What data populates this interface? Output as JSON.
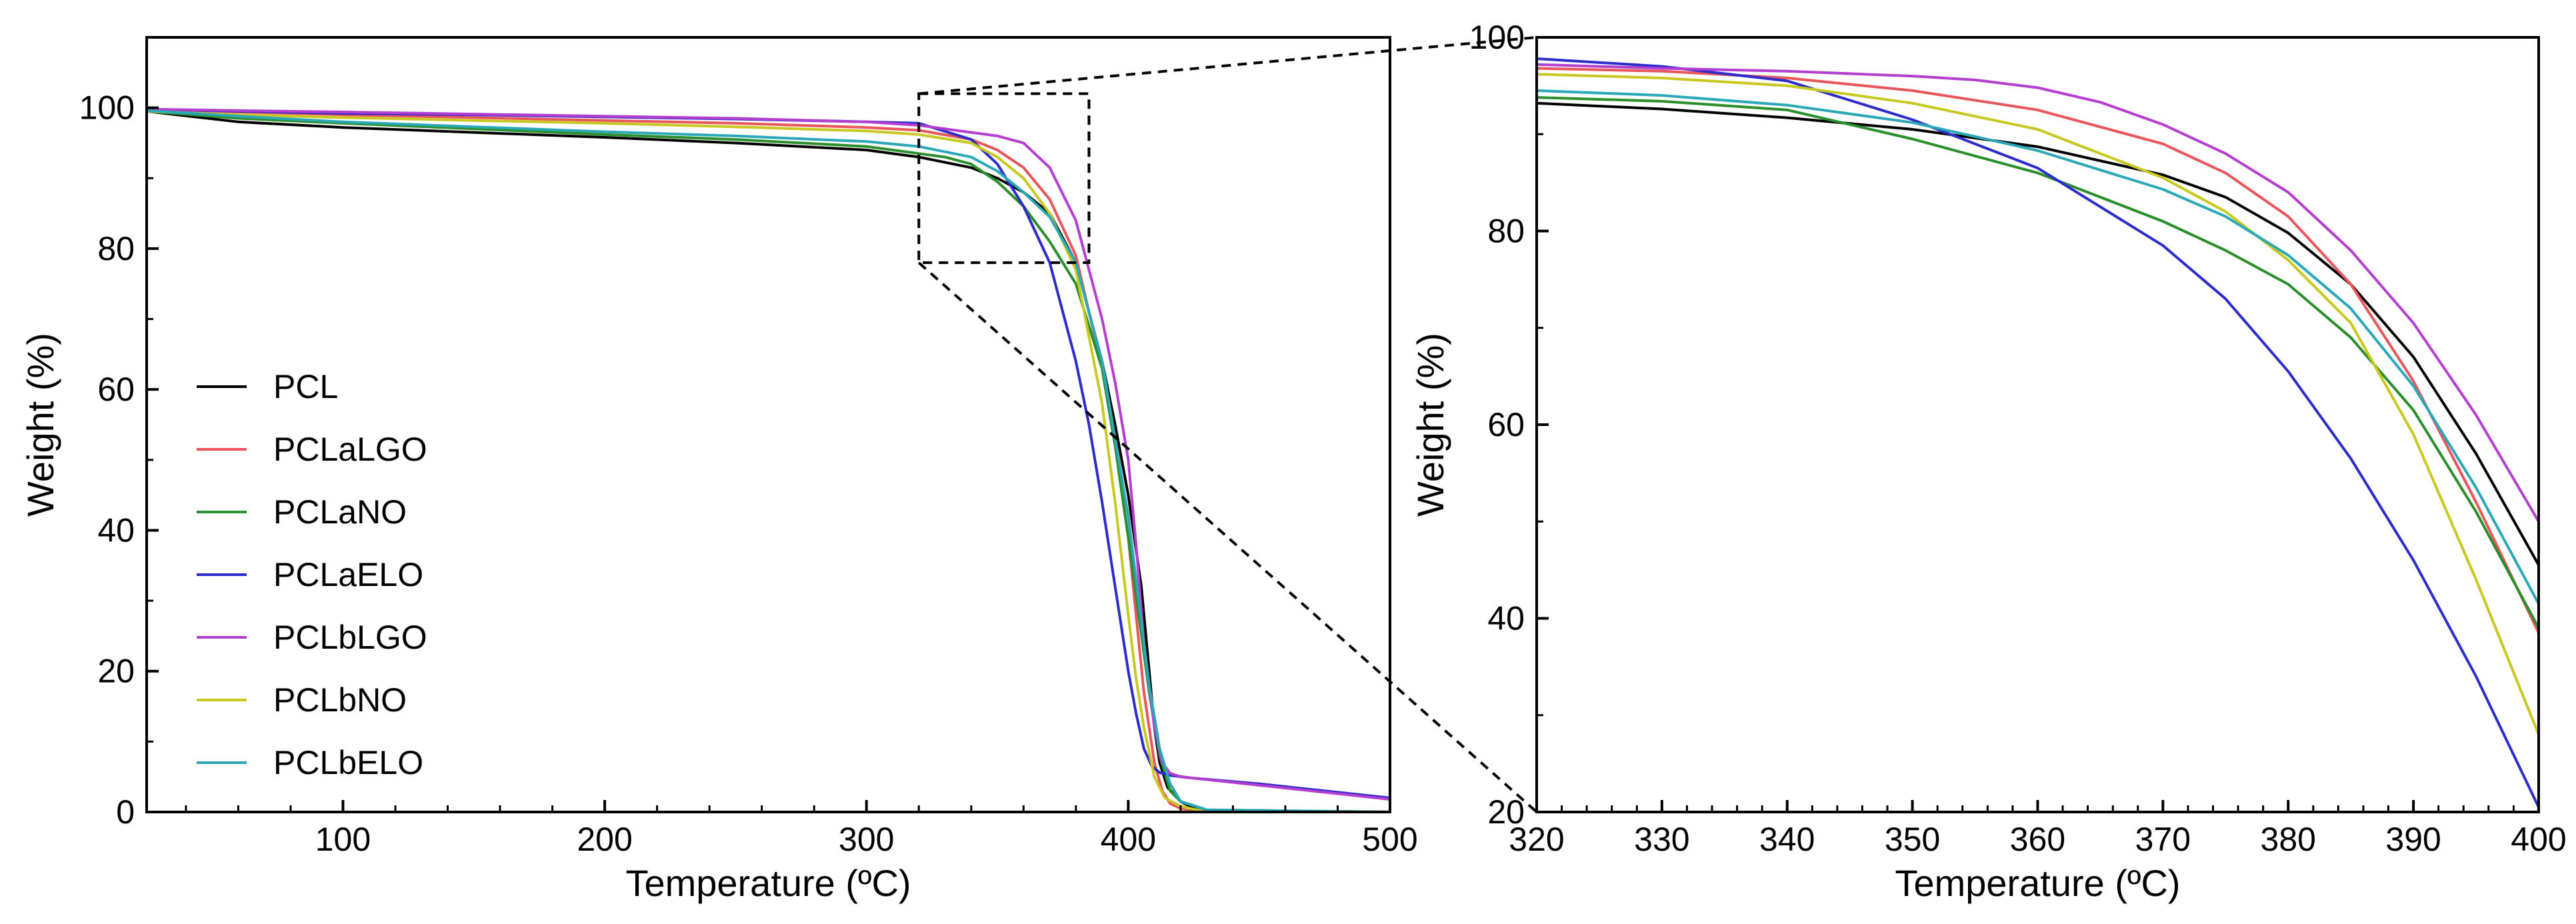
{
  "chart_data": [
    {
      "type": "line",
      "id": "main",
      "xlabel": "Temperature (ºC)",
      "ylabel": "Weight (%)",
      "xlim": [
        25,
        500
      ],
      "ylim": [
        0,
        110
      ],
      "xticks": [
        100,
        200,
        300,
        400,
        500
      ],
      "yticks": [
        0,
        20,
        40,
        60,
        80,
        100
      ],
      "legend_position": "middle-left",
      "zoom_region": {
        "x": [
          320,
          385
        ],
        "y": [
          78,
          102
        ]
      },
      "series": [
        {
          "name": "PCL",
          "color": "#000000",
          "x": [
            25,
            60,
            100,
            150,
            200,
            250,
            300,
            320,
            340,
            350,
            360,
            370,
            380,
            390,
            395,
            400,
            405,
            408,
            410,
            412,
            415,
            420,
            425,
            430,
            440,
            500
          ],
          "y": [
            99.5,
            98,
            97.2,
            96.5,
            95.8,
            95,
            94,
            93,
            91.5,
            90,
            88,
            85,
            78,
            64,
            55,
            45,
            32,
            20,
            12,
            7,
            3.5,
            1.5,
            0.5,
            0.2,
            0,
            0
          ]
        },
        {
          "name": "PCLaLGO",
          "color": "#e8555a",
          "x": [
            25,
            60,
            100,
            150,
            200,
            250,
            300,
            320,
            340,
            350,
            360,
            370,
            380,
            390,
            395,
            400,
            403,
            406,
            410,
            413,
            416,
            420,
            430,
            500
          ],
          "y": [
            99.8,
            99.4,
            99,
            98.6,
            98.2,
            97.8,
            97.2,
            96.8,
            95.5,
            94,
            91.5,
            87,
            79,
            63,
            52,
            39,
            28,
            17,
            7,
            3,
            1.2,
            0.5,
            0,
            0
          ]
        },
        {
          "name": "PCLaNO",
          "color": "#2a8f2a",
          "x": [
            25,
            60,
            100,
            150,
            200,
            250,
            300,
            320,
            330,
            340,
            350,
            360,
            370,
            380,
            390,
            395,
            400,
            404,
            408,
            412,
            416,
            420,
            430,
            500
          ],
          "y": [
            99.5,
            98.5,
            97.8,
            97,
            96.2,
            95.5,
            94.5,
            93.5,
            93,
            92,
            89.5,
            86,
            81,
            75,
            63,
            52,
            39,
            28,
            17,
            8,
            3,
            1.5,
            0.3,
            0
          ]
        },
        {
          "name": "PCLaELO",
          "color": "#2c2ccc",
          "x": [
            25,
            60,
            100,
            150,
            200,
            250,
            300,
            320,
            340,
            350,
            360,
            370,
            380,
            385,
            390,
            395,
            400,
            403,
            406,
            409,
            412,
            416,
            425,
            450,
            500
          ],
          "y": [
            99.8,
            99.5,
            99.2,
            99,
            98.7,
            98.4,
            98,
            97.8,
            95.5,
            92,
            86,
            78,
            64,
            55,
            44,
            32,
            20,
            14,
            9,
            6.5,
            5.6,
            5.2,
            4.8,
            4,
            2
          ]
        },
        {
          "name": "PCLbLGO",
          "color": "#b33ed0",
          "x": [
            25,
            60,
            100,
            150,
            200,
            250,
            300,
            320,
            340,
            350,
            360,
            370,
            380,
            390,
            395,
            400,
            403,
            406,
            410,
            413,
            416,
            420,
            430,
            450,
            500
          ],
          "y": [
            99.8,
            99.6,
            99.4,
            99.1,
            98.8,
            98.5,
            98,
            97.5,
            96.5,
            96,
            95,
            91.5,
            84,
            70,
            61,
            50,
            38,
            24,
            12,
            7,
            5.5,
            5,
            4.6,
            3.8,
            1.8
          ]
        },
        {
          "name": "PCLbNO",
          "color": "#c8c820",
          "x": [
            25,
            60,
            100,
            150,
            200,
            250,
            300,
            320,
            340,
            350,
            360,
            370,
            380,
            390,
            395,
            400,
            403,
            406,
            410,
            414,
            420,
            430,
            500
          ],
          "y": [
            99.5,
            99,
            98.6,
            98.2,
            97.8,
            97.3,
            96.7,
            96.2,
            95,
            93,
            90,
            85,
            77,
            58,
            44,
            28,
            19,
            12,
            5,
            2,
            0.8,
            0,
            0
          ]
        },
        {
          "name": "PCLbELO",
          "color": "#2aa8b8",
          "x": [
            25,
            60,
            100,
            150,
            200,
            250,
            300,
            320,
            340,
            350,
            360,
            370,
            380,
            390,
            395,
            400,
            404,
            408,
            412,
            416,
            420,
            430,
            500
          ],
          "y": [
            99.6,
            98.8,
            98,
            97.3,
            96.6,
            96,
            95.2,
            94.5,
            93,
            91,
            88,
            84.5,
            78,
            64,
            53,
            42,
            30,
            18,
            9,
            4,
            1.5,
            0.3,
            0
          ]
        }
      ]
    },
    {
      "type": "line",
      "id": "inset",
      "xlabel": "Temperature (ºC)",
      "ylabel": "Weight (%)",
      "xlim": [
        320,
        400
      ],
      "ylim": [
        20,
        100
      ],
      "xticks": [
        320,
        330,
        340,
        350,
        360,
        370,
        380,
        390,
        400
      ],
      "yticks": [
        20,
        40,
        60,
        80,
        100
      ],
      "series": [
        {
          "name": "PCL",
          "color": "#000000",
          "x": [
            320,
            330,
            340,
            350,
            360,
            370,
            375,
            380,
            385,
            390,
            395,
            400
          ],
          "y": [
            93.2,
            92.6,
            91.7,
            90.5,
            88.7,
            85.8,
            83.5,
            79.8,
            74.5,
            67,
            57,
            45.5
          ]
        },
        {
          "name": "PCLaLGO",
          "color": "#e8555a",
          "x": [
            320,
            330,
            340,
            350,
            360,
            370,
            375,
            380,
            385,
            390,
            395,
            400
          ],
          "y": [
            96.8,
            96.5,
            95.8,
            94.5,
            92.5,
            89,
            86,
            81.5,
            74.5,
            64.5,
            52,
            38.5
          ]
        },
        {
          "name": "PCLaNO",
          "color": "#2a8f2a",
          "x": [
            320,
            330,
            340,
            350,
            360,
            370,
            375,
            380,
            385,
            390,
            395,
            400
          ],
          "y": [
            93.8,
            93.4,
            92.5,
            89.5,
            86,
            81,
            78,
            74.5,
            69,
            61.5,
            51,
            39
          ]
        },
        {
          "name": "PCLaELO",
          "color": "#2c2ccc",
          "x": [
            320,
            330,
            340,
            345,
            350,
            360,
            370,
            375,
            380,
            385,
            390,
            395,
            400
          ],
          "y": [
            97.8,
            97,
            95.5,
            93.5,
            91.5,
            86.5,
            78.5,
            73,
            65.5,
            56.5,
            46,
            34,
            20.5
          ]
        },
        {
          "name": "PCLbLGO",
          "color": "#b33ed0",
          "x": [
            320,
            330,
            340,
            350,
            355,
            360,
            365,
            370,
            375,
            380,
            385,
            390,
            395,
            400
          ],
          "y": [
            97.2,
            96.8,
            96.5,
            96,
            95.6,
            94.8,
            93.3,
            91,
            88,
            84,
            78,
            70.5,
            61,
            50
          ]
        },
        {
          "name": "PCLbNO",
          "color": "#c8c820",
          "x": [
            320,
            330,
            340,
            350,
            360,
            370,
            375,
            380,
            385,
            390,
            395,
            400
          ],
          "y": [
            96.2,
            95.8,
            95,
            93.2,
            90.5,
            85.5,
            82,
            77,
            70.5,
            59,
            44,
            28
          ]
        },
        {
          "name": "PCLbELO",
          "color": "#2aa8b8",
          "x": [
            320,
            330,
            340,
            350,
            360,
            370,
            375,
            380,
            385,
            390,
            395,
            400
          ],
          "y": [
            94.5,
            94,
            93,
            91.2,
            88.3,
            84.3,
            81.5,
            77.5,
            72,
            64,
            53.5,
            41.5
          ]
        }
      ]
    }
  ]
}
